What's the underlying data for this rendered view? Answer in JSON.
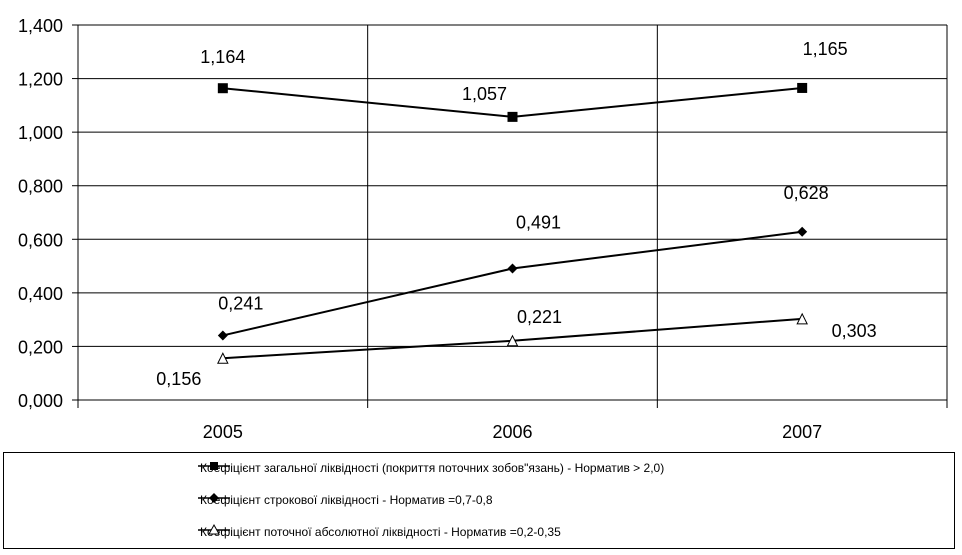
{
  "chart_data": {
    "type": "line",
    "categories": [
      "2005",
      "2006",
      "2007"
    ],
    "ylim": [
      0,
      1.4
    ],
    "yticks": [
      "0,000",
      "0,200",
      "0,400",
      "0,600",
      "0,800",
      "1,000",
      "1,200",
      "1,400"
    ],
    "grid": true,
    "legend_position": "bottom",
    "series": [
      {
        "name": "Коефіцієнт загальної ліквідності (покриття поточних зобов\"язань) - Норматив > 2,0)",
        "values": [
          1.164,
          1.057,
          1.165
        ],
        "labels": [
          "1,164",
          "1,057",
          "1,165"
        ],
        "marker": "square",
        "color": "#000000"
      },
      {
        "name": "Коефіцієнт строкової ліквідності - Норматив =0,7-0,8",
        "values": [
          0.241,
          0.491,
          0.628
        ],
        "labels": [
          "0,241",
          "0,491",
          "0,628"
        ],
        "marker": "diamond",
        "color": "#000000"
      },
      {
        "name": "Коефіцієнт поточної абсолютної ліквідності - Норматив =0,2-0,35",
        "values": [
          0.156,
          0.221,
          0.303
        ],
        "labels": [
          "0,156",
          "0,221",
          "0,303"
        ],
        "marker": "triangle",
        "color": "#000000"
      }
    ]
  }
}
